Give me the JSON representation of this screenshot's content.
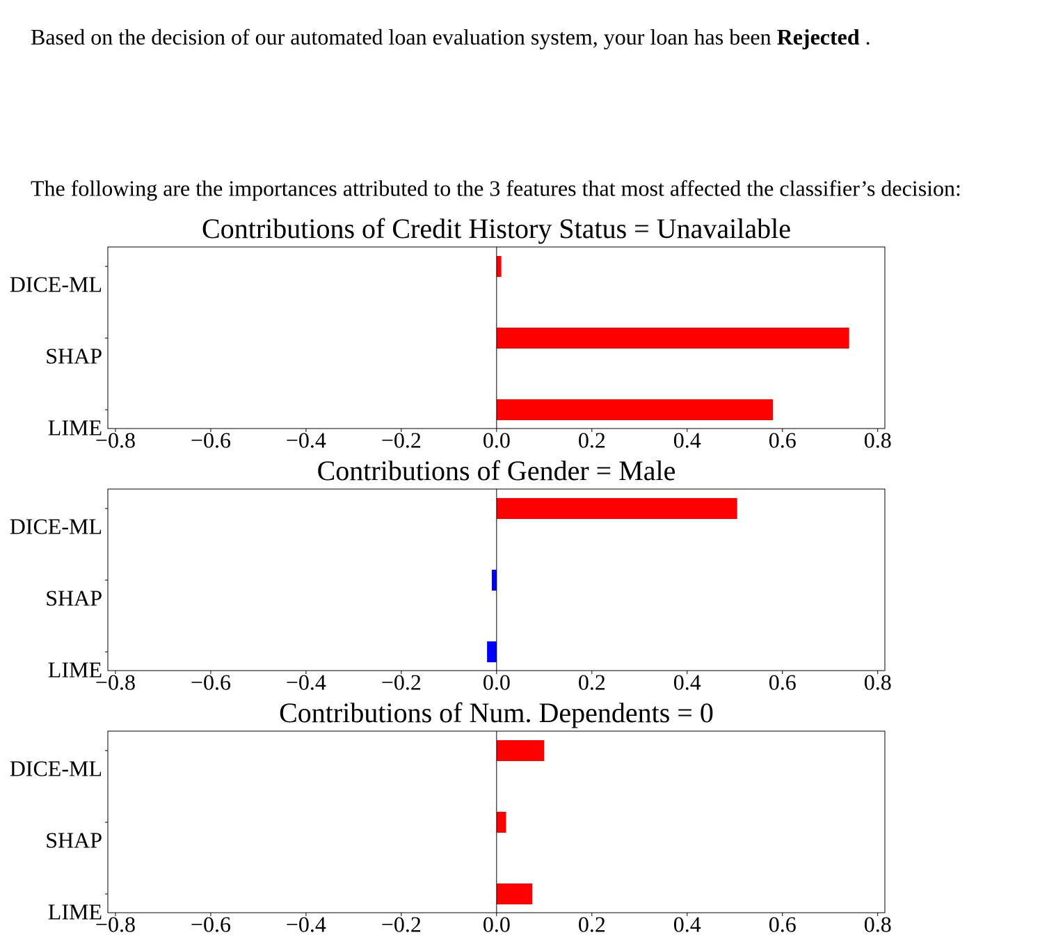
{
  "text": {
    "decision_prefix": "Based on the decision of our automated loan evaluation system, your loan has been",
    "decision": "Rejected",
    "decision_suffix": ".",
    "intro": "The following are the importances attributed to the 3 features that most affected the classifier’s decision:"
  },
  "chart_data": [
    {
      "type": "barh",
      "title": "Contributions of Credit History Status = Unavailable",
      "categories": [
        "DICE-ML",
        "SHAP",
        "LIME"
      ],
      "values": [
        0.01,
        0.74,
        0.58
      ],
      "positive_color": "#ff0000",
      "negative_color": "#0000ff",
      "xlim": [
        -0.816,
        0.815
      ],
      "xticks": [
        {
          "value": -0.8,
          "label": "−0.8"
        },
        {
          "value": -0.6,
          "label": "−0.6"
        },
        {
          "value": -0.4,
          "label": "−0.4"
        },
        {
          "value": -0.2,
          "label": "−0.2"
        },
        {
          "value": 0,
          "label": "0.0"
        },
        0.2,
        0.4,
        0.6,
        0.8
      ]
    },
    {
      "type": "barh",
      "title": "Contributions of Gender = Male",
      "categories": [
        "DICE-ML",
        "SHAP",
        "LIME"
      ],
      "values": [
        0.505,
        -0.01,
        -0.02
      ],
      "positive_color": "#ff0000",
      "negative_color": "#0000ff",
      "xlim": [
        -0.816,
        0.815
      ],
      "xticks": [
        {
          "value": -0.8,
          "label": "−0.8"
        },
        {
          "value": -0.6,
          "label": "−0.6"
        },
        {
          "value": -0.4,
          "label": "−0.4"
        },
        {
          "value": -0.2,
          "label": "−0.2"
        },
        {
          "value": 0,
          "label": "0.0"
        },
        0.2,
        0.4,
        0.6,
        0.8
      ]
    },
    {
      "type": "barh",
      "title": "Contributions of Num. Dependents = 0",
      "categories": [
        "DICE-ML",
        "SHAP",
        "LIME"
      ],
      "values": [
        0.1,
        0.02,
        0.075
      ],
      "positive_color": "#ff0000",
      "negative_color": "#0000ff",
      "xlim": [
        -0.816,
        0.815
      ],
      "xticks": [
        {
          "value": -0.8,
          "label": "−0.8"
        },
        {
          "value": -0.6,
          "label": "−0.6"
        },
        {
          "value": -0.4,
          "label": "−0.4"
        },
        {
          "value": -0.2,
          "label": "−0.2"
        },
        {
          "value": 0,
          "label": "0.0"
        },
        0.2,
        0.4,
        0.6,
        0.8
      ]
    }
  ]
}
